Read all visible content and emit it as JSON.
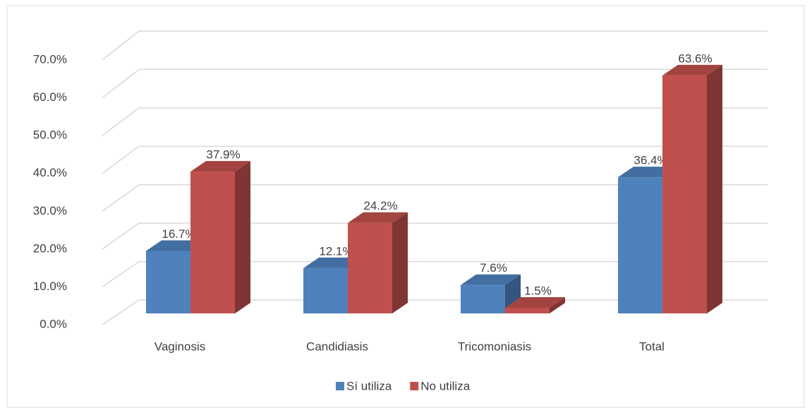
{
  "chart_data": {
    "type": "bar3d",
    "categories": [
      "Vaginosis",
      "Candidiasis",
      "Tricomoniasis",
      "Total"
    ],
    "series": [
      {
        "name": "Sí utiliza",
        "color": "#4f81bd",
        "values": [
          16.7,
          12.1,
          7.6,
          36.4
        ],
        "value_labels": [
          "16.7%",
          "12.1%",
          "7.6%",
          "36.4%"
        ]
      },
      {
        "name": "No utiliza",
        "color": "#c0504d",
        "values": [
          37.9,
          24.2,
          1.5,
          63.6
        ],
        "value_labels": [
          "37.9%",
          "24.2%",
          "1.5%",
          "63.6%"
        ]
      }
    ],
    "ylim": [
      0,
      70
    ],
    "yticks": [
      {
        "value": 0,
        "label": "0.0%"
      },
      {
        "value": 10,
        "label": "10.0%"
      },
      {
        "value": 20,
        "label": "20.0%"
      },
      {
        "value": 30,
        "label": "30.0%"
      },
      {
        "value": 40,
        "label": "40.0%"
      },
      {
        "value": 50,
        "label": "50.0%"
      },
      {
        "value": 60,
        "label": "60.0%"
      },
      {
        "value": 70,
        "label": "70.0%"
      }
    ],
    "grid": true,
    "legend": "bottom"
  }
}
